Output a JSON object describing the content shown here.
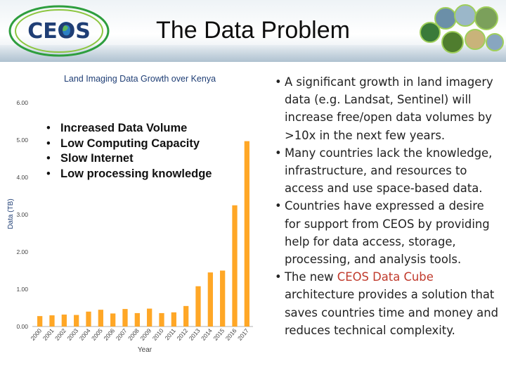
{
  "slide": {
    "title": "The Data Problem",
    "logo_text": "CEOS",
    "accent_color": "#c0392b",
    "bar_color": "#ffa726"
  },
  "chart_data": {
    "type": "bar",
    "title": "Land Imaging Data Growth over Kenya",
    "xlabel": "Year",
    "ylabel": "Data (TB)",
    "ylim": [
      0,
      6
    ],
    "yticks": [
      "0.00",
      "1.00",
      "2.00",
      "3.00",
      "4.00",
      "5.00",
      "6.00"
    ],
    "grid": false,
    "categories": [
      "2000",
      "2001",
      "2002",
      "2003",
      "2004",
      "2005",
      "2006",
      "2007",
      "2008",
      "2009",
      "2010",
      "2011",
      "2012",
      "2013",
      "2014",
      "2015",
      "2016",
      "2017"
    ],
    "values": [
      0.28,
      0.3,
      0.32,
      0.31,
      0.4,
      0.45,
      0.35,
      0.47,
      0.36,
      0.48,
      0.36,
      0.38,
      0.55,
      1.08,
      1.45,
      1.5,
      3.25,
      4.97
    ]
  },
  "chart_overlay_bullets": [
    "Increased Data Volume",
    "Low Computing Capacity",
    "Slow Internet",
    "Low processing knowledge"
  ],
  "right_bullets": [
    {
      "text": "A significant growth in land imagery data (e.g. Landsat, Sentinel) will increase free/open data volumes by >10x in the next few years."
    },
    {
      "text": "Many countries lack the knowledge, infrastructure, and resources to access and use space-based data."
    },
    {
      "text": "Countries have expressed a desire for support from CEOS by providing help for data access, storage, processing, and analysis tools."
    },
    {
      "pre": "The new ",
      "highlight": "CEOS Data Cube",
      "post": " architecture provides a solution that saves countries time and money and reduces technical complexity."
    }
  ]
}
